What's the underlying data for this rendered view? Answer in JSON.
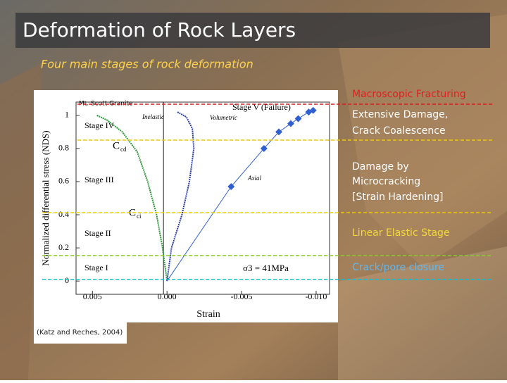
{
  "slide": {
    "title": "Deformation of Rock Layers",
    "subtitle": "Four main stages of rock deformation",
    "stages": [
      "Macroscopic Fracturing",
      [
        "Extensive Damage,",
        "Crack Coalescence"
      ],
      [
        "Damage by",
        "Microcracking",
        "[Strain Hardening]"
      ],
      "Linear Elastic Stage",
      "Crack/pore closure"
    ],
    "caption": "(Katz and Reches, 2004)"
  },
  "figure": {
    "sample": "Mt. Scott Granite",
    "ylabel": "Normalized differential stress (NDS)",
    "xlabel": "Strain",
    "xlim": [
      0.0061,
      -0.0109
    ],
    "ylim": [
      -0.08,
      1.08
    ],
    "xticks": [
      0.005,
      {
        "value": 0,
        "label": "0.000"
      },
      -0.005,
      {
        "value": -0.01,
        "label": "-0.010"
      }
    ],
    "yticks": [
      0,
      0.2,
      0.4,
      0.6,
      0.8,
      1
    ],
    "stage_labels": [
      "Stage V (Failure)",
      "Stage IV",
      "Stage III",
      "Stage II",
      "Stage I"
    ],
    "crack_initiation": {
      "main": "C",
      "sub": "ci"
    },
    "crack_damage": {
      "main": "C",
      "sub": "cd"
    },
    "confining": "σ3 = 41MPa",
    "series": [
      {
        "name": "Inelastic",
        "color": "#2e9a3a",
        "x": [
          0.0047,
          0.004,
          0.003,
          0.002,
          0.0013,
          0.0007,
          0.0003,
          0
        ],
        "y": [
          1.0,
          0.97,
          0.9,
          0.78,
          0.6,
          0.4,
          0.2,
          0
        ]
      },
      {
        "name": "Volumetric",
        "color": "#2b3fa8",
        "x": [
          0,
          -0.0003,
          -0.001,
          -0.0015,
          -0.0018,
          -0.0017,
          -0.0013,
          -0.0007
        ],
        "y": [
          0,
          0.2,
          0.4,
          0.6,
          0.8,
          0.92,
          0.99,
          1.02
        ]
      },
      {
        "name": "Axial",
        "color": "#2f5fd0",
        "markers": true,
        "x": [
          0,
          -0.0043,
          -0.0065,
          -0.0075,
          -0.0083,
          -0.0088,
          -0.0095,
          -0.0098
        ],
        "y": [
          0,
          0.57,
          0.8,
          0.9,
          0.95,
          0.98,
          1.02,
          1.03
        ]
      }
    ]
  }
}
